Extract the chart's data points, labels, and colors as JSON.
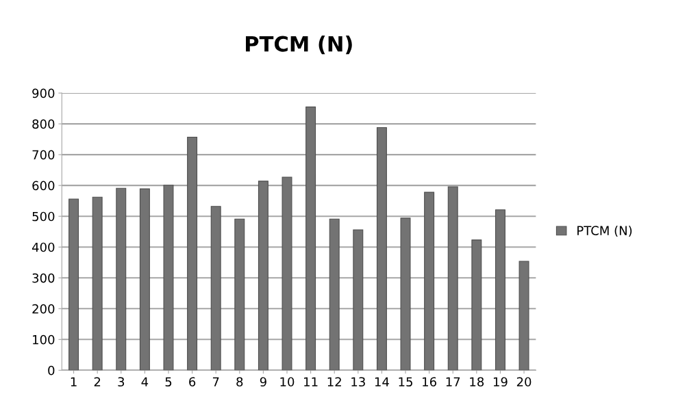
{
  "chart_data": {
    "type": "bar",
    "title": "PTCM (N)",
    "categories": [
      "1",
      "2",
      "3",
      "4",
      "5",
      "6",
      "7",
      "8",
      "9",
      "10",
      "11",
      "12",
      "13",
      "14",
      "15",
      "16",
      "17",
      "18",
      "19",
      "20"
    ],
    "series": [
      {
        "name": "PTCM (N)",
        "color": "#737373",
        "values": [
          556,
          562,
          591,
          589,
          601,
          757,
          532,
          491,
          614,
          627,
          855,
          491,
          456,
          788,
          494,
          578,
          596,
          423,
          521,
          354
        ]
      }
    ],
    "ylim": [
      0,
      900
    ],
    "yticks": [
      0,
      100,
      200,
      300,
      400,
      500,
      600,
      700,
      800,
      900
    ],
    "grid": "y",
    "legend": "right"
  }
}
